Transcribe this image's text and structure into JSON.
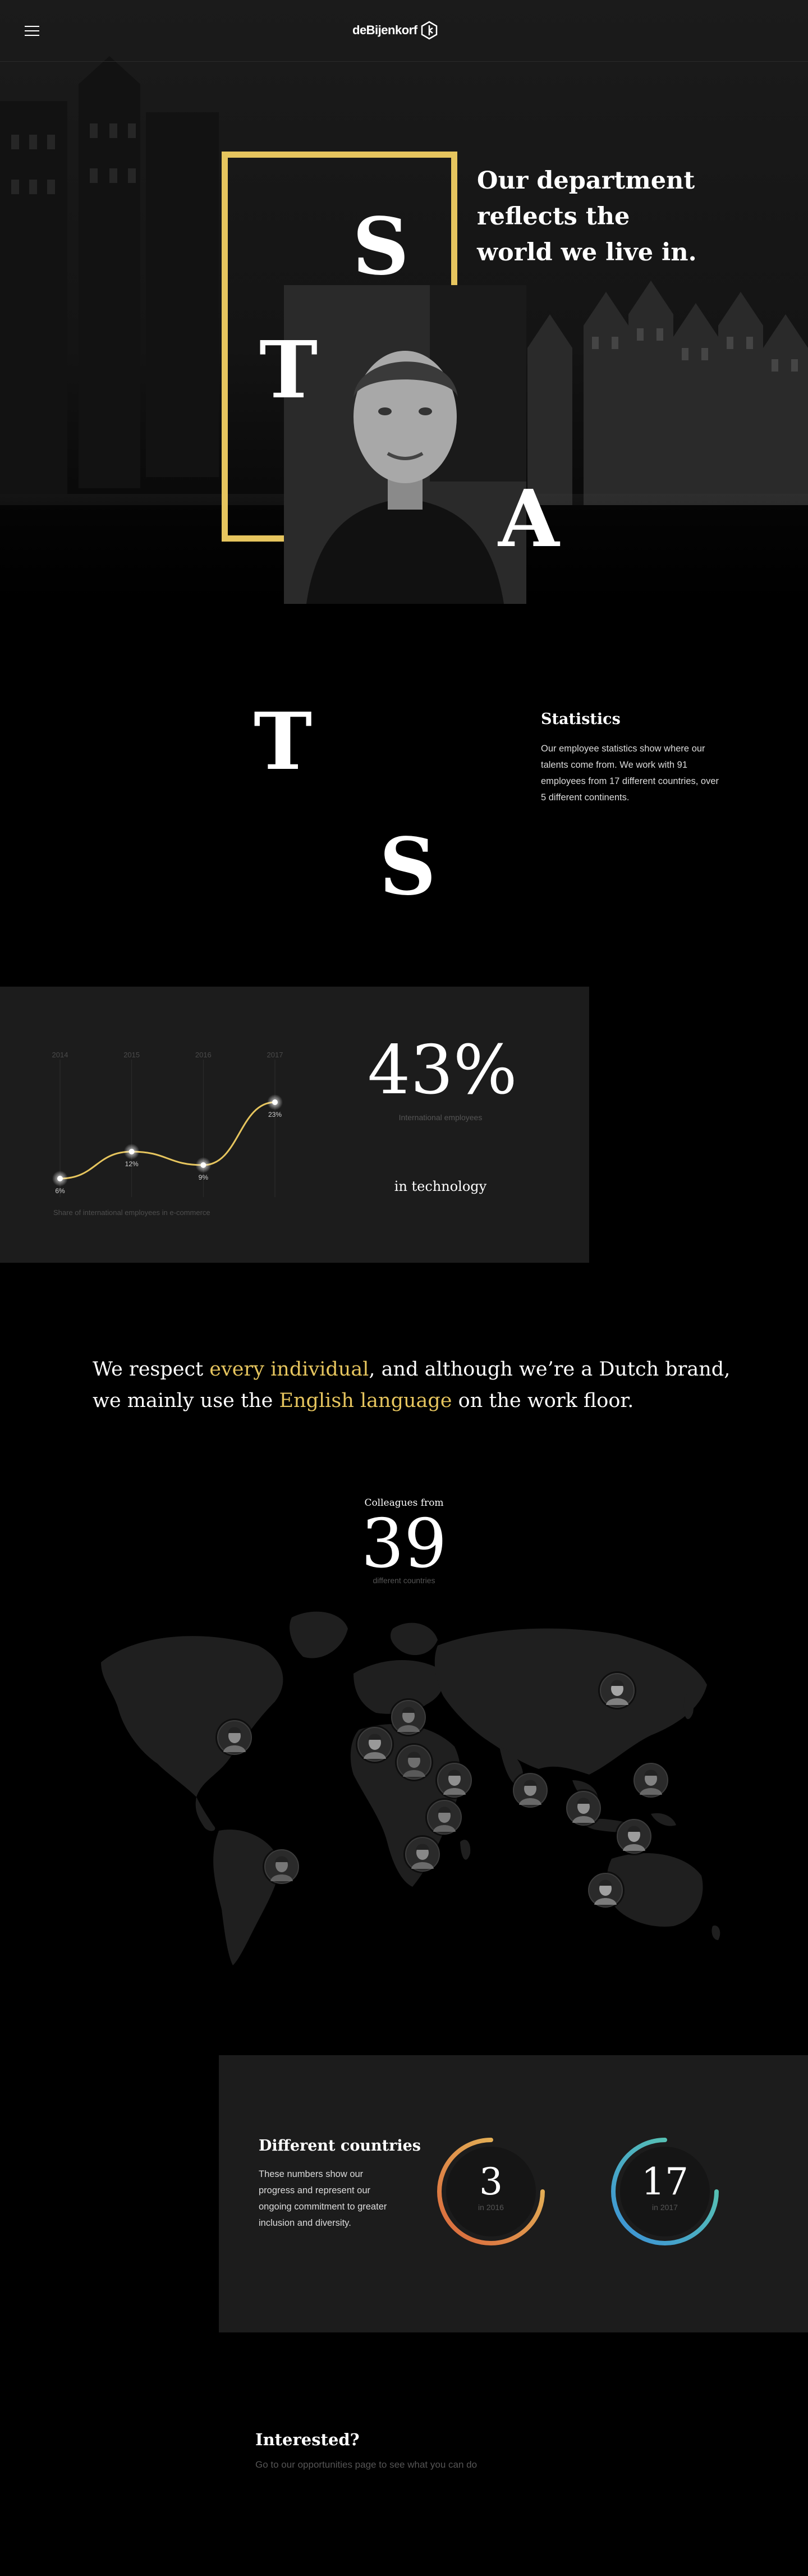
{
  "header": {
    "logo_text": "deBijenkorf",
    "logo_icon": "hexagon-logo-icon",
    "menu_icon": "hamburger-menu-icon"
  },
  "hero": {
    "title": "Our department reflects the world we live in.",
    "letters": [
      "S",
      "T",
      "A"
    ],
    "accent_color": "#e6c55e"
  },
  "statistics": {
    "letters": [
      "T",
      "S"
    ],
    "title": "Statistics",
    "description": "Our employee statistics show where our talents come from. We work with 91 employees from 17 different countries, over 5 different continents."
  },
  "chart": {
    "big_value": "43%",
    "big_value_label": "International employees",
    "subtitle": "in technology",
    "caption": "Share of international employees in e-commerce"
  },
  "chart_data": {
    "type": "line",
    "categories": [
      "2014",
      "2015",
      "2016",
      "2017"
    ],
    "values": [
      6,
      12,
      9,
      23
    ],
    "point_labels": [
      "6%",
      "12%",
      "9%",
      "23%"
    ],
    "ylim": [
      0,
      30
    ],
    "grid": true,
    "xlabel": "",
    "ylabel": "",
    "title": ""
  },
  "quote": {
    "part1": "We respect ",
    "highlight1": "every individual",
    "part2": ", and although we’re a Dutch brand, we mainly use the ",
    "highlight2": "English language",
    "part3": " on the work floor."
  },
  "colleagues": {
    "from": "Colleagues from",
    "count": "39",
    "sub": "different countries",
    "avatars_count": 14
  },
  "countries": {
    "title": "Different countries",
    "description": "These numbers show our progress and represent our ongoing commitment to greater inclusion and diversity.",
    "rings": [
      {
        "value": "3",
        "label": "in 2016",
        "fill": 0.75,
        "color_start": "#e6c55e",
        "color_end": "#d9643a"
      },
      {
        "value": "17",
        "label": "in 2017",
        "fill": 0.75,
        "color_start": "#5fd0a8",
        "color_end": "#3a8fd9"
      }
    ]
  },
  "interested": {
    "title": "Interested?",
    "link_text": "Go to our opportunities page to see what you can do"
  }
}
